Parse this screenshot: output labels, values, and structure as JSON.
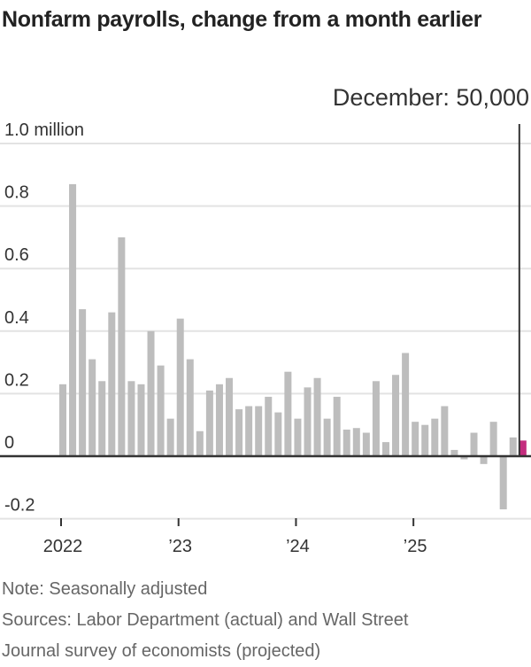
{
  "chart_data": {
    "type": "bar",
    "title": "Nonfarm payrolls, change from a month earlier",
    "annotation": "December: 50,000",
    "unit": "million",
    "ylim": [
      -0.2,
      1.0
    ],
    "yticks": [
      {
        "value": 1.0,
        "label": "1.0 million"
      },
      {
        "value": 0.8,
        "label": "0.8"
      },
      {
        "value": 0.6,
        "label": "0.6"
      },
      {
        "value": 0.4,
        "label": "0.4"
      },
      {
        "value": 0.2,
        "label": "0.2"
      },
      {
        "value": 0,
        "label": "0"
      },
      {
        "value": -0.2,
        "label": "-0.2"
      }
    ],
    "xticks": [
      {
        "index": 0,
        "label": "2022"
      },
      {
        "index": 12,
        "label": "’23"
      },
      {
        "index": 24,
        "label": "’24"
      },
      {
        "index": 36,
        "label": "’25"
      }
    ],
    "start": "2022-01",
    "values": [
      0.23,
      0.87,
      0.47,
      0.31,
      0.24,
      0.46,
      0.7,
      0.24,
      0.23,
      0.4,
      0.29,
      0.12,
      0.44,
      0.31,
      0.08,
      0.21,
      0.23,
      0.25,
      0.15,
      0.16,
      0.16,
      0.19,
      0.14,
      0.27,
      0.12,
      0.22,
      0.25,
      0.12,
      0.19,
      0.085,
      0.09,
      0.075,
      0.24,
      0.045,
      0.26,
      0.33,
      0.11,
      0.1,
      0.12,
      0.16,
      0.02,
      -0.01,
      0.075,
      -0.025,
      0.11,
      -0.17,
      0.06,
      0.05
    ],
    "projected_index": 47,
    "colors": {
      "actual": "#bdbdbd",
      "projected": "#c42d7e",
      "grid": "#e3e3e3",
      "axis": "#333333"
    },
    "grid": true
  },
  "notes": {
    "note": "Note: Seasonally adjusted",
    "sources_line1": "Sources: Labor Department (actual) and Wall Street",
    "sources_line2": "Journal survey of economists (projected)"
  }
}
